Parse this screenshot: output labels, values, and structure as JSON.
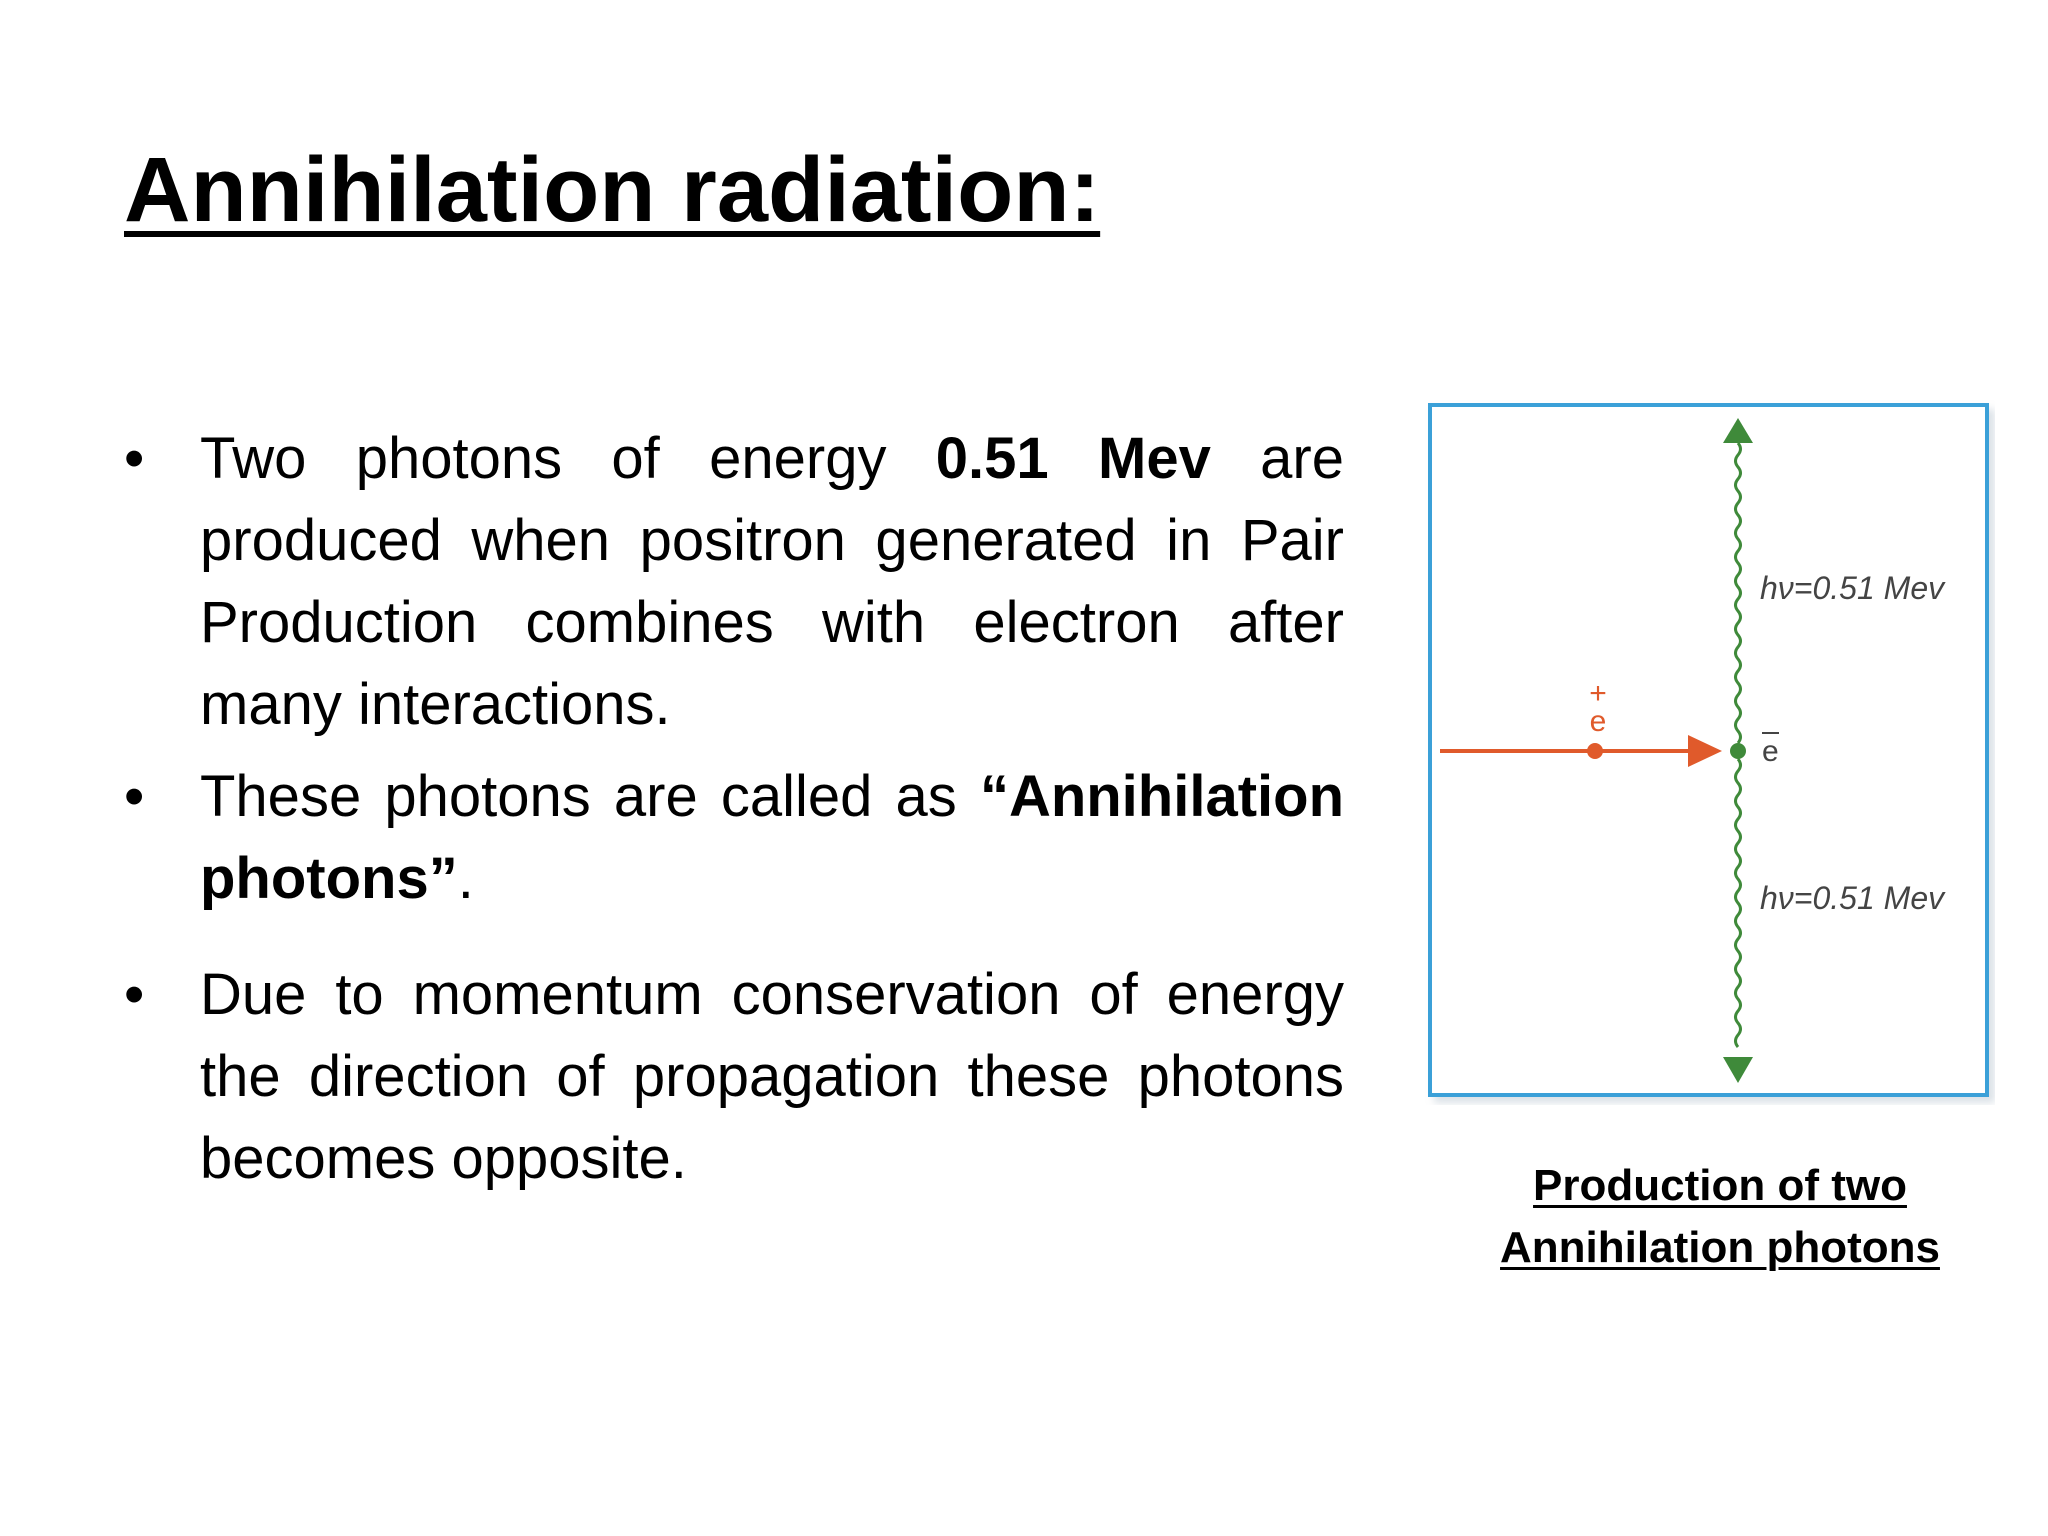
{
  "title": "Annihilation radiation:",
  "bullets": [
    {
      "before": "Two photons of energy ",
      "bold": "0.51 Mev",
      "after": " are produced when positron generated in Pair Production combines with electron after many interactions."
    },
    {
      "before": "These photons are called as ",
      "bold": "“Annihilation photons”",
      "after": "."
    },
    {
      "before": " Due to momentum conservation of energy the direction of propagation these photons becomes opposite.",
      "bold": "",
      "after": ""
    }
  ],
  "diagram": {
    "photon_label_top": "hν=0.51 Mev",
    "photon_label_bottom": "hν=0.51 Mev",
    "positron_label": "+\ne",
    "electron_label": "e",
    "colors": {
      "frame": "#3aa0d8",
      "positron": "#e05a2b",
      "photon": "#3f8a3a",
      "label": "#444444"
    }
  },
  "caption": {
    "line1": "Production of two",
    "line2": "Annihilation photons"
  }
}
